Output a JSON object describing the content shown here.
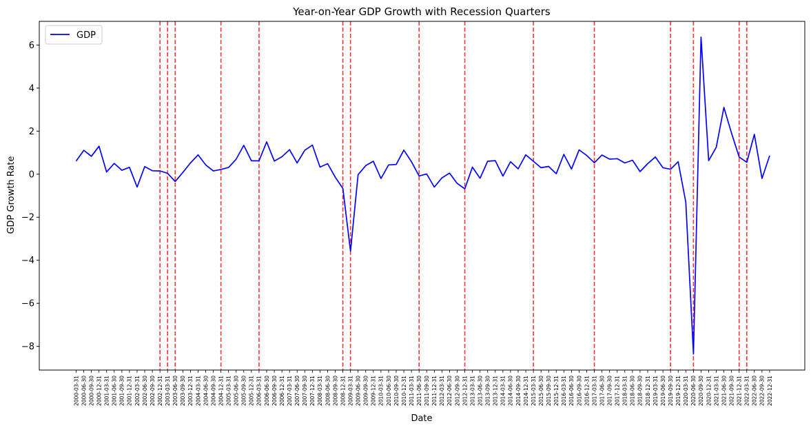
{
  "chart_data": {
    "type": "line",
    "title": "Year-on-Year GDP Growth with Recession Quarters",
    "xlabel": "Date",
    "ylabel": "GDP Growth Rate",
    "ylim": [
      -9.1,
      7.1
    ],
    "yticks": [
      6,
      4,
      2,
      0,
      -2,
      -4,
      -6,
      -8
    ],
    "grid": false,
    "legend_position": "top-left",
    "colors": {
      "line": "#0000ff",
      "recession": "#ff3333",
      "recession_tick": "#ff0000"
    },
    "x": [
      "2000-03-31",
      "2000-06-30",
      "2000-09-30",
      "2000-12-31",
      "2001-03-31",
      "2001-06-30",
      "2001-09-30",
      "2001-12-31",
      "2002-03-31",
      "2002-06-30",
      "2002-09-30",
      "2002-12-31",
      "2003-03-31",
      "2003-06-30",
      "2003-09-30",
      "2003-12-31",
      "2004-03-31",
      "2004-06-30",
      "2004-09-30",
      "2004-12-31",
      "2005-03-31",
      "2005-06-30",
      "2005-09-30",
      "2005-12-31",
      "2006-03-31",
      "2006-06-30",
      "2006-09-30",
      "2006-12-31",
      "2007-03-31",
      "2007-06-30",
      "2007-09-30",
      "2007-12-31",
      "2008-03-31",
      "2008-06-30",
      "2008-09-30",
      "2008-12-31",
      "2009-03-31",
      "2009-06-30",
      "2009-09-30",
      "2009-12-31",
      "2010-03-31",
      "2010-06-30",
      "2010-09-30",
      "2010-12-31",
      "2011-03-31",
      "2011-06-30",
      "2011-09-30",
      "2011-12-31",
      "2012-03-31",
      "2012-06-30",
      "2012-09-30",
      "2012-12-31",
      "2013-03-31",
      "2013-06-30",
      "2013-09-30",
      "2013-12-31",
      "2014-03-31",
      "2014-06-30",
      "2014-09-30",
      "2014-12-31",
      "2015-03-31",
      "2015-06-30",
      "2015-09-30",
      "2015-12-31",
      "2016-03-31",
      "2016-06-30",
      "2016-09-30",
      "2016-12-31",
      "2017-03-31",
      "2017-06-30",
      "2017-09-30",
      "2017-12-31",
      "2018-03-31",
      "2018-06-30",
      "2018-09-30",
      "2018-12-31",
      "2019-03-31",
      "2019-06-30",
      "2019-09-30",
      "2019-12-31",
      "2020-03-31",
      "2020-06-30",
      "2020-09-30",
      "2020-12-31",
      "2021-03-31",
      "2021-06-30",
      "2021-09-30",
      "2021-12-31",
      "2022-03-31",
      "2022-06-30",
      "2022-09-30",
      "2022-12-31"
    ],
    "series": [
      {
        "name": "GDP",
        "values": [
          0.61,
          1.11,
          0.83,
          1.3,
          0.1,
          0.5,
          0.18,
          0.32,
          -0.6,
          0.35,
          0.16,
          0.15,
          0.04,
          -0.34,
          0.08,
          0.52,
          0.9,
          0.43,
          0.15,
          0.22,
          0.31,
          0.7,
          1.34,
          0.62,
          0.62,
          1.5,
          0.61,
          0.81,
          1.14,
          0.52,
          1.11,
          1.35,
          0.33,
          0.49,
          -0.14,
          -0.66,
          -3.58,
          -0.02,
          0.4,
          0.6,
          -0.2,
          0.43,
          0.45,
          1.12,
          0.58,
          -0.08,
          0.01,
          -0.6,
          -0.17,
          0.05,
          -0.43,
          -0.68,
          0.33,
          -0.19,
          0.6,
          0.63,
          -0.09,
          0.58,
          0.25,
          0.9,
          0.6,
          0.3,
          0.36,
          0.02,
          0.92,
          0.24,
          1.13,
          0.87,
          0.53,
          0.89,
          0.7,
          0.72,
          0.52,
          0.65,
          0.12,
          0.49,
          0.8,
          0.3,
          0.23,
          0.58,
          -1.3,
          -8.35,
          6.37,
          0.63,
          1.25,
          3.1,
          1.9,
          0.8,
          0.55,
          1.85,
          -0.2,
          0.86
        ]
      }
    ],
    "recession_quarters": [
      "2002-12-31",
      "2003-03-31",
      "2003-06-30",
      "2004-12-31",
      "2006-03-31",
      "2008-12-31",
      "2009-03-31",
      "2011-06-30",
      "2012-12-31",
      "2015-03-31",
      "2017-03-31",
      "2019-09-30",
      "2020-06-30",
      "2021-12-31",
      "2022-03-31"
    ]
  }
}
